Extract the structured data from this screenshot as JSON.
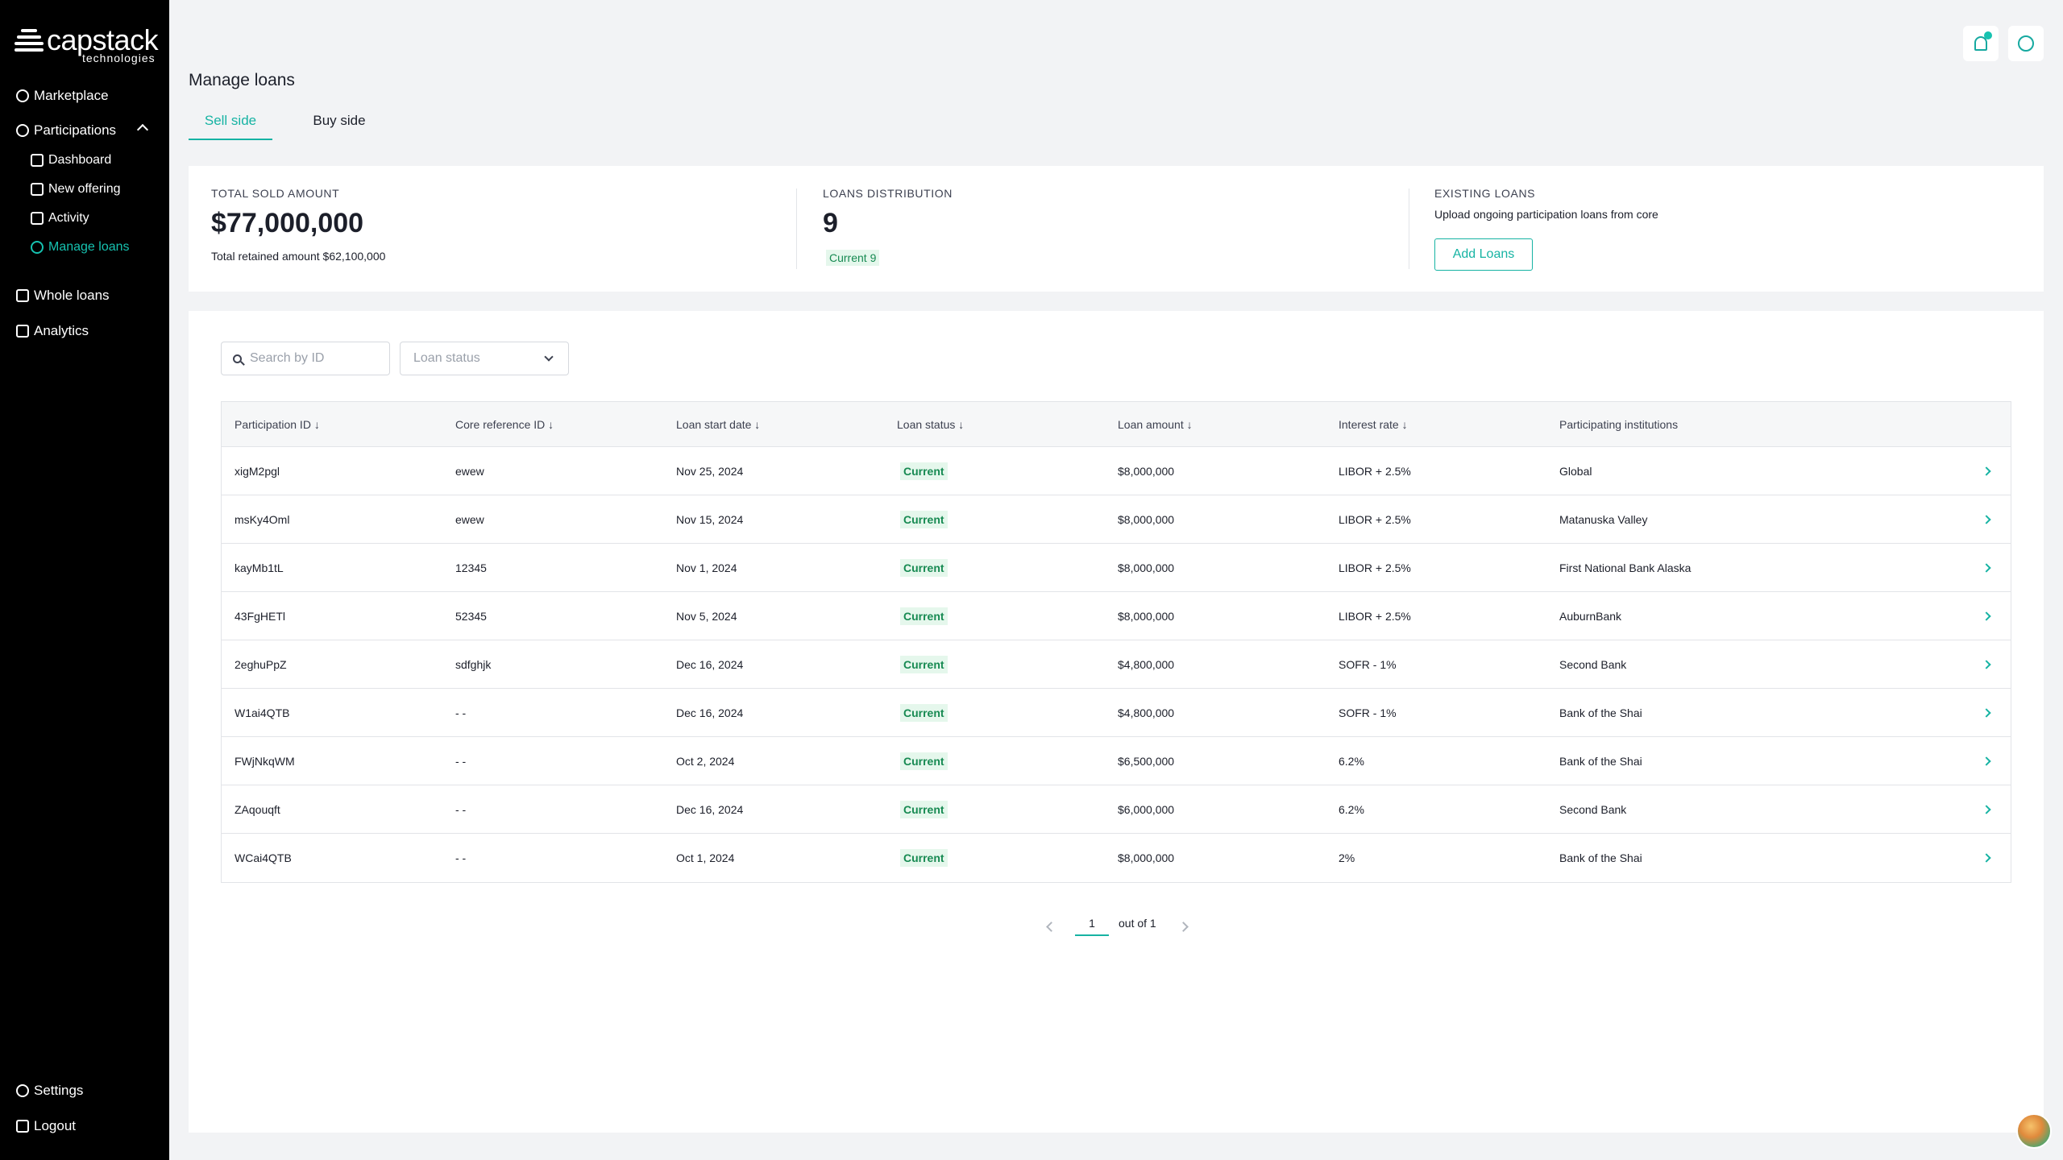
{
  "brand": {
    "name": "capstack",
    "sub": "technologies"
  },
  "sidebar": {
    "items": [
      {
        "label": "Marketplace"
      },
      {
        "label": "Participations"
      },
      {
        "label": "Dashboard"
      },
      {
        "label": "New offering"
      },
      {
        "label": "Activity"
      },
      {
        "label": "Manage loans"
      },
      {
        "label": "Whole loans"
      },
      {
        "label": "Analytics"
      }
    ],
    "bottom": [
      {
        "label": "Settings"
      },
      {
        "label": "Logout"
      }
    ]
  },
  "header": {
    "title": "Manage loans",
    "tabs": [
      {
        "label": "Sell side"
      },
      {
        "label": "Buy side"
      }
    ]
  },
  "summary": {
    "sold": {
      "label": "TOTAL SOLD AMOUNT",
      "value": "$77,000,000",
      "note": "Total retained amount $62,100,000"
    },
    "distribution": {
      "label": "LOANS DISTRIBUTION",
      "value": "9",
      "pill": "Current 9"
    },
    "existing": {
      "label": "EXISTING LOANS",
      "note": "Upload ongoing participation loans from core",
      "button": "Add Loans"
    }
  },
  "filters": {
    "search_placeholder": "Search by ID",
    "status_placeholder": "Loan status"
  },
  "table": {
    "headers": [
      "Participation ID ↓",
      "Core reference ID ↓",
      "Loan start date ↓",
      "Loan status ↓",
      "Loan amount ↓",
      "Interest rate ↓",
      "Participating institutions"
    ],
    "rows": [
      [
        "xigM2pgl",
        "ewew",
        "Nov 25, 2024",
        "Current",
        "$8,000,000",
        "LIBOR + 2.5%",
        "Global"
      ],
      [
        "msKy4Oml",
        "ewew",
        "Nov 15, 2024",
        "Current",
        "$8,000,000",
        "LIBOR + 2.5%",
        "Matanuska Valley"
      ],
      [
        "kayMb1tL",
        "12345",
        "Nov 1, 2024",
        "Current",
        "$8,000,000",
        "LIBOR + 2.5%",
        "First National Bank Alaska"
      ],
      [
        "43FgHETl",
        "52345",
        "Nov 5, 2024",
        "Current",
        "$8,000,000",
        "LIBOR + 2.5%",
        "AuburnBank"
      ],
      [
        "2eghuPpZ",
        "sdfghjk",
        "Dec 16, 2024",
        "Current",
        "$4,800,000",
        "SOFR - 1%",
        "Second Bank"
      ],
      [
        "W1ai4QTB",
        "- -",
        "Dec 16, 2024",
        "Current",
        "$4,800,000",
        "SOFR - 1%",
        "Bank of the Shai"
      ],
      [
        "FWjNkqWM",
        "- -",
        "Oct 2, 2024",
        "Current",
        "$6,500,000",
        "6.2%",
        "Bank of the Shai"
      ],
      [
        "ZAqouqft",
        "- -",
        "Dec 16, 2024",
        "Current",
        "$6,000,000",
        "6.2%",
        "Second Bank"
      ],
      [
        "WCai4QTB",
        "- -",
        "Oct 1, 2024",
        "Current",
        "$8,000,000",
        "2%",
        "Bank of the Shai"
      ]
    ]
  },
  "pagination": {
    "page": "1",
    "total_text": "out of 1"
  },
  "colors": {
    "accent": "#16b3a3",
    "status_bg": "#e5f7ec",
    "status_text": "#178a52"
  }
}
